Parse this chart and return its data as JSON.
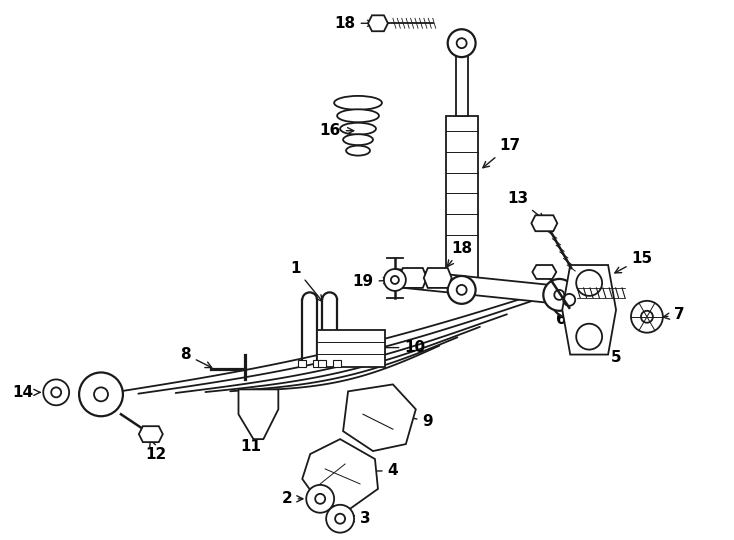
{
  "bg_color": "#ffffff",
  "line_color": "#1a1a1a",
  "text_color": "#000000",
  "fig_width": 7.34,
  "fig_height": 5.4,
  "dpi": 100
}
